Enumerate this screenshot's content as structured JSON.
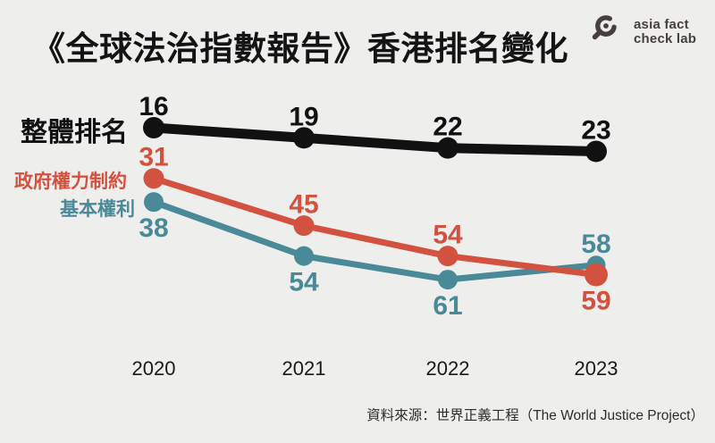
{
  "header": {
    "title": "《全球法治指數報告》香港排名變化",
    "logo": {
      "line1": "asia fact",
      "line2": "check lab",
      "icon": "magnifier-icon",
      "color": "#46403c"
    }
  },
  "chart_data": {
    "type": "line",
    "title": "《全球法治指數報告》香港排名變化",
    "x_labels": [
      "2020",
      "2021",
      "2022",
      "2023"
    ],
    "series": [
      {
        "name": "整體排名",
        "values": [
          16,
          19,
          22,
          23
        ],
        "color": "#111111",
        "label_positions": [
          "above",
          "above",
          "above",
          "above"
        ]
      },
      {
        "name": "政府權力制約",
        "values": [
          31,
          45,
          54,
          59
        ],
        "color": "#d3513f",
        "label_positions": [
          "above",
          "above",
          "above",
          "below"
        ]
      },
      {
        "name": "基本權利",
        "values": [
          38,
          54,
          61,
          58
        ],
        "color": "#4a8997",
        "label_positions": [
          "below",
          "below",
          "below",
          "above"
        ]
      }
    ],
    "grid": false,
    "axes_shown": false,
    "legend_position": "left-of-first-points",
    "value_labels_shown": true
  },
  "footer": {
    "source": "資料來源：世界正義工程（The World Justice Project）"
  }
}
